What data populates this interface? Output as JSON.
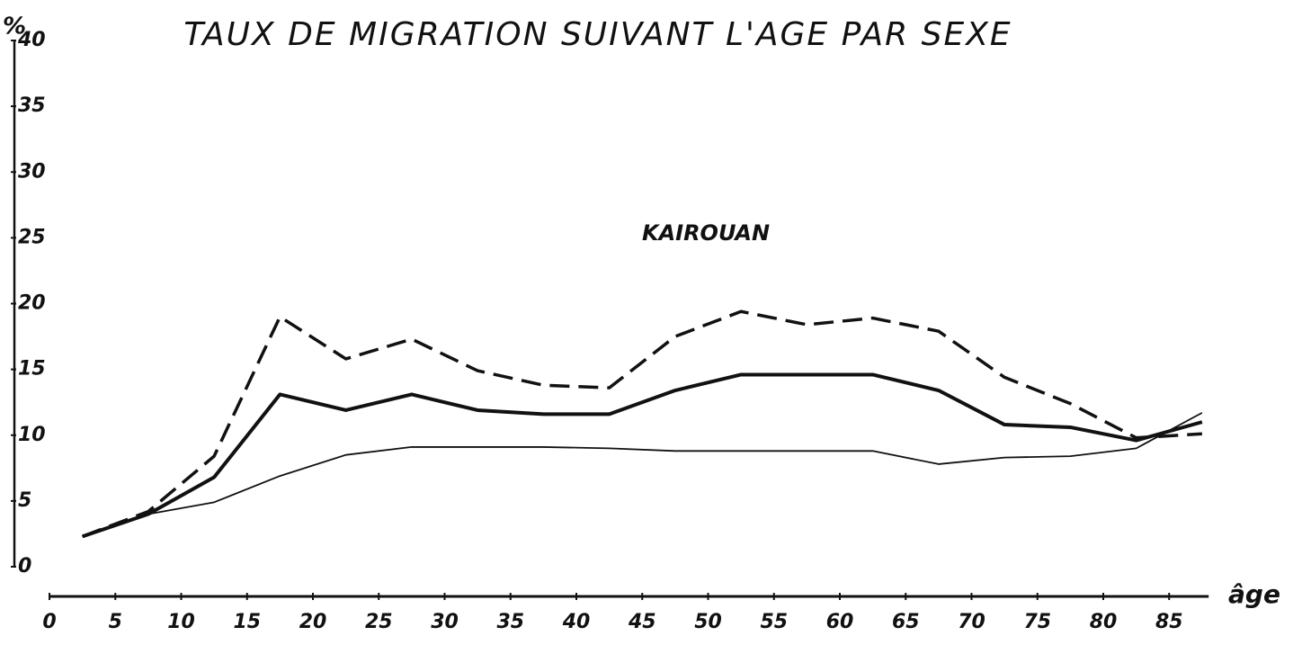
{
  "chart_data": {
    "type": "line",
    "title": "TAUX DE MIGRATION SUIVANT L'AGE PAR SEXE",
    "annotation": "KAIROUAN",
    "y_label": "%",
    "x_label": "âge",
    "x": [
      2.5,
      7.5,
      12.5,
      17.5,
      22.5,
      27.5,
      32.5,
      37.5,
      42.5,
      47.5,
      52.5,
      57.5,
      62.5,
      67.5,
      72.5,
      77.5,
      82.5,
      87.5
    ],
    "series": [
      {
        "color": "#111111",
        "style": "dashed",
        "width": 3.5,
        "values": [
          2.3,
          4.2,
          8.4,
          19,
          15.8,
          17.3,
          14.9,
          13.8,
          13.6,
          17.5,
          19.4,
          18.4,
          18.9,
          17.9,
          14.4,
          12.4,
          9.8,
          10.1
        ]
      },
      {
        "color": "#111111",
        "style": "solid",
        "width": 4,
        "values": [
          2.3,
          4,
          6.8,
          13.1,
          11.9,
          13.1,
          11.9,
          11.6,
          11.6,
          13.4,
          14.6,
          14.6,
          14.6,
          13.4,
          10.8,
          10.6,
          9.6,
          11
        ]
      },
      {
        "color": "#111111",
        "style": "solid",
        "width": 1.8,
        "values": [
          2.3,
          4,
          4.9,
          6.9,
          8.5,
          9.1,
          9.1,
          9.1,
          9.0,
          8.8,
          8.8,
          8.8,
          8.8,
          7.8,
          8.3,
          8.4,
          9,
          11.7
        ]
      }
    ],
    "xlim": [
      0,
      88
    ],
    "ylim": [
      0,
      40
    ],
    "xticks": [
      0,
      5,
      10,
      15,
      20,
      25,
      30,
      35,
      40,
      45,
      50,
      55,
      60,
      65,
      70,
      75,
      80,
      85
    ],
    "yticks": [
      0,
      5,
      10,
      15,
      20,
      25,
      30,
      35,
      40
    ]
  }
}
